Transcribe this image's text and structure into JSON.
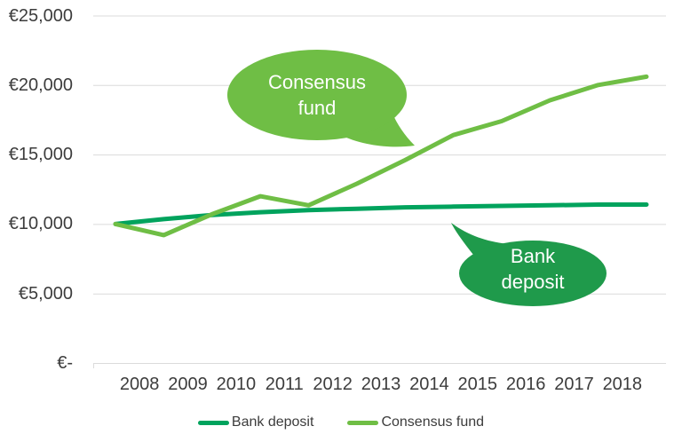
{
  "chart_data": {
    "type": "line",
    "title": "",
    "x_tick_labels": [
      "2008",
      "2009",
      "2010",
      "2011",
      "2012",
      "2013",
      "2014",
      "2015",
      "2016",
      "2017",
      "2018"
    ],
    "x_points": [
      2008,
      2009,
      2010,
      2011,
      2012,
      2013,
      2014,
      2015,
      2016,
      2017,
      2018,
      2019
    ],
    "y_tick_labels": [
      "€-",
      "€5,000",
      "€10,000",
      "€15,000",
      "€20,000",
      "€25,000"
    ],
    "y_tick_step": 5000,
    "ylim": [
      0,
      25000
    ],
    "grid": "horizontal-only",
    "legend_position": "bottom-center",
    "series": [
      {
        "name": "Bank deposit",
        "color": "#00A35D",
        "values": [
          10000,
          10350,
          10650,
          10850,
          11000,
          11100,
          11200,
          11250,
          11300,
          11350,
          11400,
          11400
        ]
      },
      {
        "name": "Consensus fund",
        "color": "#6FBE45",
        "values": [
          10000,
          9200,
          10700,
          12000,
          11350,
          12900,
          14600,
          16400,
          17400,
          18900,
          20000,
          20600
        ]
      }
    ],
    "callouts": [
      {
        "label": "Consensus fund",
        "fill": "#6FBE45",
        "text_color": "#FFFFFF"
      },
      {
        "label": "Bank deposit",
        "fill": "#1F9A4B",
        "text_color": "#FFFFFF"
      }
    ]
  },
  "legend": {
    "items": [
      {
        "label": "Bank deposit"
      },
      {
        "label": "Consensus fund"
      }
    ]
  },
  "colors": {
    "background": "#FFFFFF",
    "grid": "#DBDBDB",
    "axis_text": "#3C3C3C"
  }
}
